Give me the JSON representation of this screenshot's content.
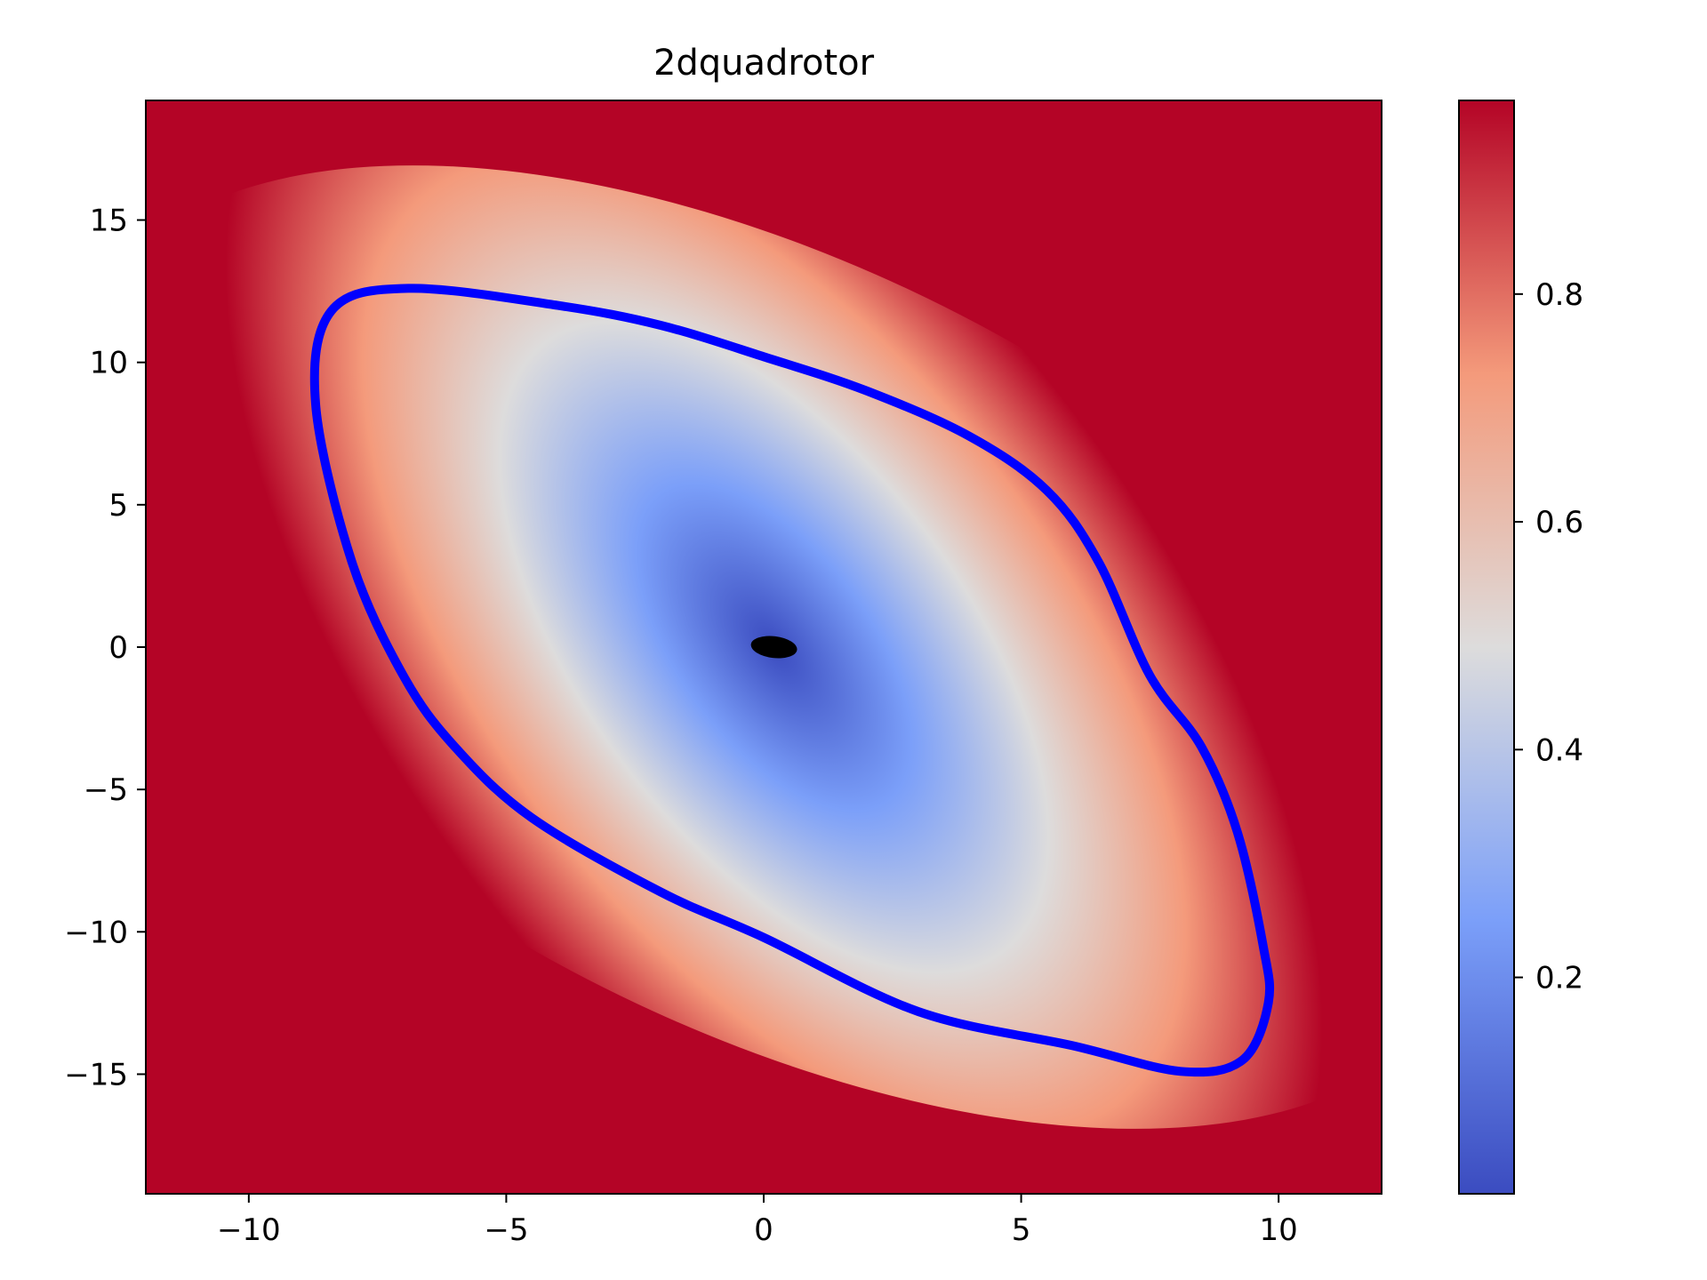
{
  "chart_data": {
    "type": "heatmap",
    "title": "2dquadrotor",
    "xlabel": "",
    "ylabel": "",
    "xlim": [
      -12,
      12
    ],
    "ylim": [
      -19.2,
      19.2
    ],
    "x_ticks": [
      {
        "value": -10,
        "label": "−10"
      },
      {
        "value": -5,
        "label": "−5"
      },
      {
        "value": 0,
        "label": "0"
      },
      {
        "value": 5,
        "label": "5"
      },
      {
        "value": 10,
        "label": "10"
      }
    ],
    "y_ticks": [
      {
        "value": 15,
        "label": "15"
      },
      {
        "value": 10,
        "label": "10"
      },
      {
        "value": 5,
        "label": "5"
      },
      {
        "value": 0,
        "label": "0"
      },
      {
        "value": -5,
        "label": "−5"
      },
      {
        "value": -10,
        "label": "−10"
      },
      {
        "value": -15,
        "label": "−15"
      }
    ],
    "grid": false,
    "colormap": "coolwarm",
    "colormap_stops": [
      {
        "v": 0.0,
        "color": "#3b4cc0"
      },
      {
        "v": 0.25,
        "color": "#7b9ff9"
      },
      {
        "v": 0.5,
        "color": "#dddcdc"
      },
      {
        "v": 0.75,
        "color": "#f49a7b"
      },
      {
        "v": 1.0,
        "color": "#b40426"
      }
    ],
    "colorbar": {
      "range": [
        0.01,
        0.97
      ],
      "ticks": [
        {
          "value": 0.2,
          "label": "0.2"
        },
        {
          "value": 0.4,
          "label": "0.4"
        },
        {
          "value": 0.6,
          "label": "0.6"
        },
        {
          "value": 0.8,
          "label": "0.8"
        }
      ],
      "placement": "right"
    },
    "level_set_boundary": {
      "color": "#0000ff",
      "points": [
        [
          -6.9,
          12.6
        ],
        [
          -4.0,
          12.0
        ],
        [
          -2.0,
          11.3
        ],
        [
          0.0,
          10.2
        ],
        [
          2.0,
          9.0
        ],
        [
          4.0,
          7.4
        ],
        [
          5.5,
          5.5
        ],
        [
          6.5,
          3.0
        ],
        [
          7.5,
          -1.0
        ],
        [
          8.5,
          -3.5
        ],
        [
          9.2,
          -6.5
        ],
        [
          9.7,
          -10.5
        ],
        [
          9.8,
          -12.5
        ],
        [
          9.3,
          -14.5
        ],
        [
          8.1,
          -14.9
        ],
        [
          6.0,
          -14.0
        ],
        [
          3.0,
          -12.8
        ],
        [
          0.0,
          -10.2
        ],
        [
          -2.0,
          -8.6
        ],
        [
          -4.5,
          -6.0
        ],
        [
          -6.0,
          -3.5
        ],
        [
          -7.0,
          -1.0
        ],
        [
          -8.0,
          3.0
        ],
        [
          -8.7,
          8.5
        ],
        [
          -8.4,
          11.8
        ]
      ]
    },
    "target_region": {
      "color": "#000000",
      "center": [
        0.2,
        0.0
      ],
      "rx": 0.45,
      "ry": 0.38,
      "rotation_deg": 7
    }
  }
}
